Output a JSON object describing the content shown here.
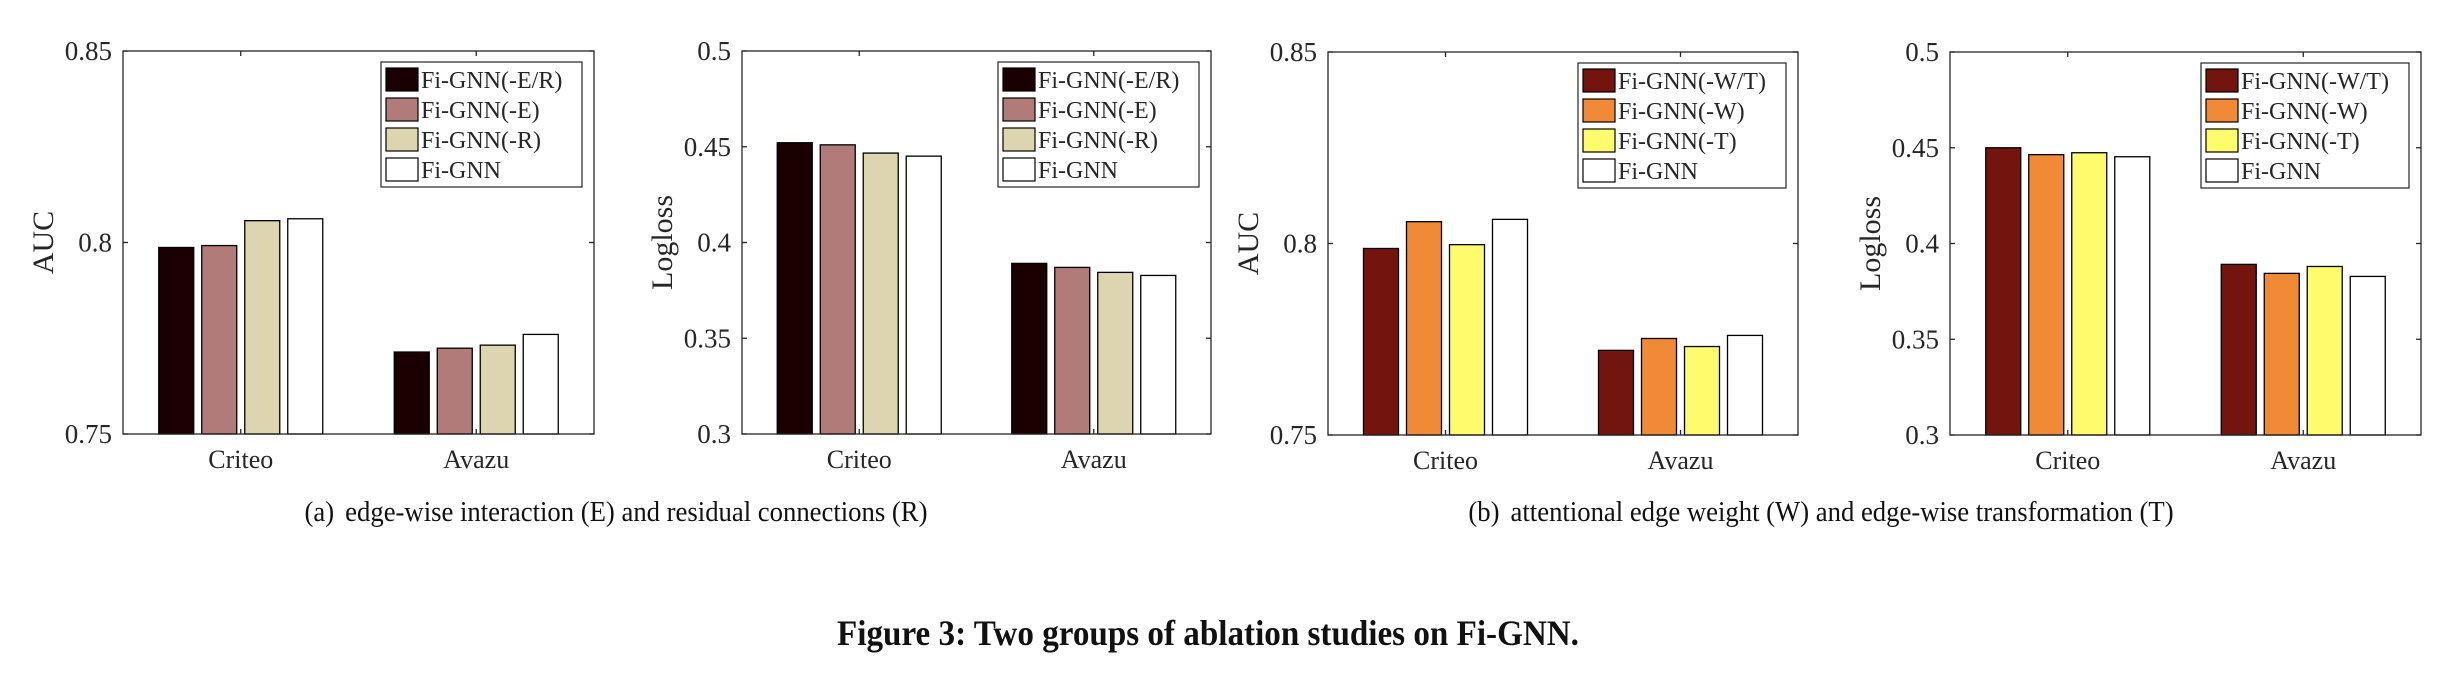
{
  "figure": {
    "title": "Figure 3: Two groups of ablation studies on Fi-GNN.",
    "subcaptions": [
      {
        "tag": "(a)",
        "text": "edge-wise interaction (E) and residual connections (R)"
      },
      {
        "tag": "(b)",
        "text": "attentional edge weight (W) and edge-wise transformation (T)"
      }
    ]
  },
  "chart_data": [
    {
      "type": "bar",
      "group": "a",
      "title": "",
      "xlabel": "",
      "ylabel": "AUC",
      "ylim": [
        0.75,
        0.85
      ],
      "yticks": [
        "0.75",
        "0.8",
        "0.85"
      ],
      "ytick_values": [
        0.75,
        0.8,
        0.85
      ],
      "categories": [
        "Criteo",
        "Avazu"
      ],
      "legend_position": "top-right",
      "grid": false,
      "series": [
        {
          "name": "Fi-GNN(-E/R)",
          "color": "#1a0000",
          "values": [
            0.7987,
            0.7714
          ]
        },
        {
          "name": "Fi-GNN(-E)",
          "color": "#b07b78",
          "values": [
            0.7992,
            0.7724
          ]
        },
        {
          "name": "Fi-GNN(-R)",
          "color": "#ddd4b0",
          "values": [
            0.8057,
            0.7732
          ]
        },
        {
          "name": "Fi-GNN",
          "color": "#ffffff",
          "values": [
            0.8062,
            0.776
          ]
        }
      ]
    },
    {
      "type": "bar",
      "group": "a",
      "title": "",
      "xlabel": "",
      "ylabel": "Logloss",
      "ylim": [
        0.3,
        0.5
      ],
      "yticks": [
        "0.3",
        "0.35",
        "0.4",
        "0.45",
        "0.5"
      ],
      "ytick_values": [
        0.3,
        0.35,
        0.4,
        0.45,
        0.5
      ],
      "categories": [
        "Criteo",
        "Avazu"
      ],
      "legend_position": "top-right",
      "grid": false,
      "series": [
        {
          "name": "Fi-GNN(-E/R)",
          "color": "#1a0000",
          "values": [
            0.4521,
            0.3891
          ]
        },
        {
          "name": "Fi-GNN(-E)",
          "color": "#b07b78",
          "values": [
            0.451,
            0.387
          ]
        },
        {
          "name": "Fi-GNN(-R)",
          "color": "#ddd4b0",
          "values": [
            0.4467,
            0.3844
          ]
        },
        {
          "name": "Fi-GNN",
          "color": "#ffffff",
          "values": [
            0.4451,
            0.3828
          ]
        }
      ]
    },
    {
      "type": "bar",
      "group": "b",
      "title": "",
      "xlabel": "",
      "ylabel": "AUC",
      "ylim": [
        0.75,
        0.85
      ],
      "yticks": [
        "0.75",
        "0.8",
        "0.85"
      ],
      "ytick_values": [
        0.75,
        0.8,
        0.85
      ],
      "categories": [
        "Criteo",
        "Avazu"
      ],
      "legend_position": "top-right",
      "grid": false,
      "series": [
        {
          "name": "Fi-GNN(-W/T)",
          "color": "#74140e",
          "values": [
            0.7987,
            0.7721
          ]
        },
        {
          "name": "Fi-GNN(-W)",
          "color": "#f08a36",
          "values": [
            0.8057,
            0.7752
          ]
        },
        {
          "name": "Fi-GNN(-T)",
          "color": "#fefc6c",
          "values": [
            0.7997,
            0.7731
          ]
        },
        {
          "name": "Fi-GNN",
          "color": "#ffffff",
          "values": [
            0.8063,
            0.776
          ]
        }
      ]
    },
    {
      "type": "bar",
      "group": "b",
      "title": "",
      "xlabel": "",
      "ylabel": "Logloss",
      "ylim": [
        0.3,
        0.5
      ],
      "yticks": [
        "0.3",
        "0.35",
        "0.4",
        "0.45",
        "0.5"
      ],
      "ytick_values": [
        0.3,
        0.35,
        0.4,
        0.45,
        0.5
      ],
      "categories": [
        "Criteo",
        "Avazu"
      ],
      "legend_position": "top-right",
      "grid": false,
      "series": [
        {
          "name": "Fi-GNN(-W/T)",
          "color": "#74140e",
          "values": [
            0.45,
            0.3891
          ]
        },
        {
          "name": "Fi-GNN(-W)",
          "color": "#f08a36",
          "values": [
            0.4464,
            0.3844
          ]
        },
        {
          "name": "Fi-GNN(-T)",
          "color": "#fefc6c",
          "values": [
            0.4474,
            0.388
          ]
        },
        {
          "name": "Fi-GNN",
          "color": "#ffffff",
          "values": [
            0.4453,
            0.3828
          ]
        }
      ]
    }
  ]
}
